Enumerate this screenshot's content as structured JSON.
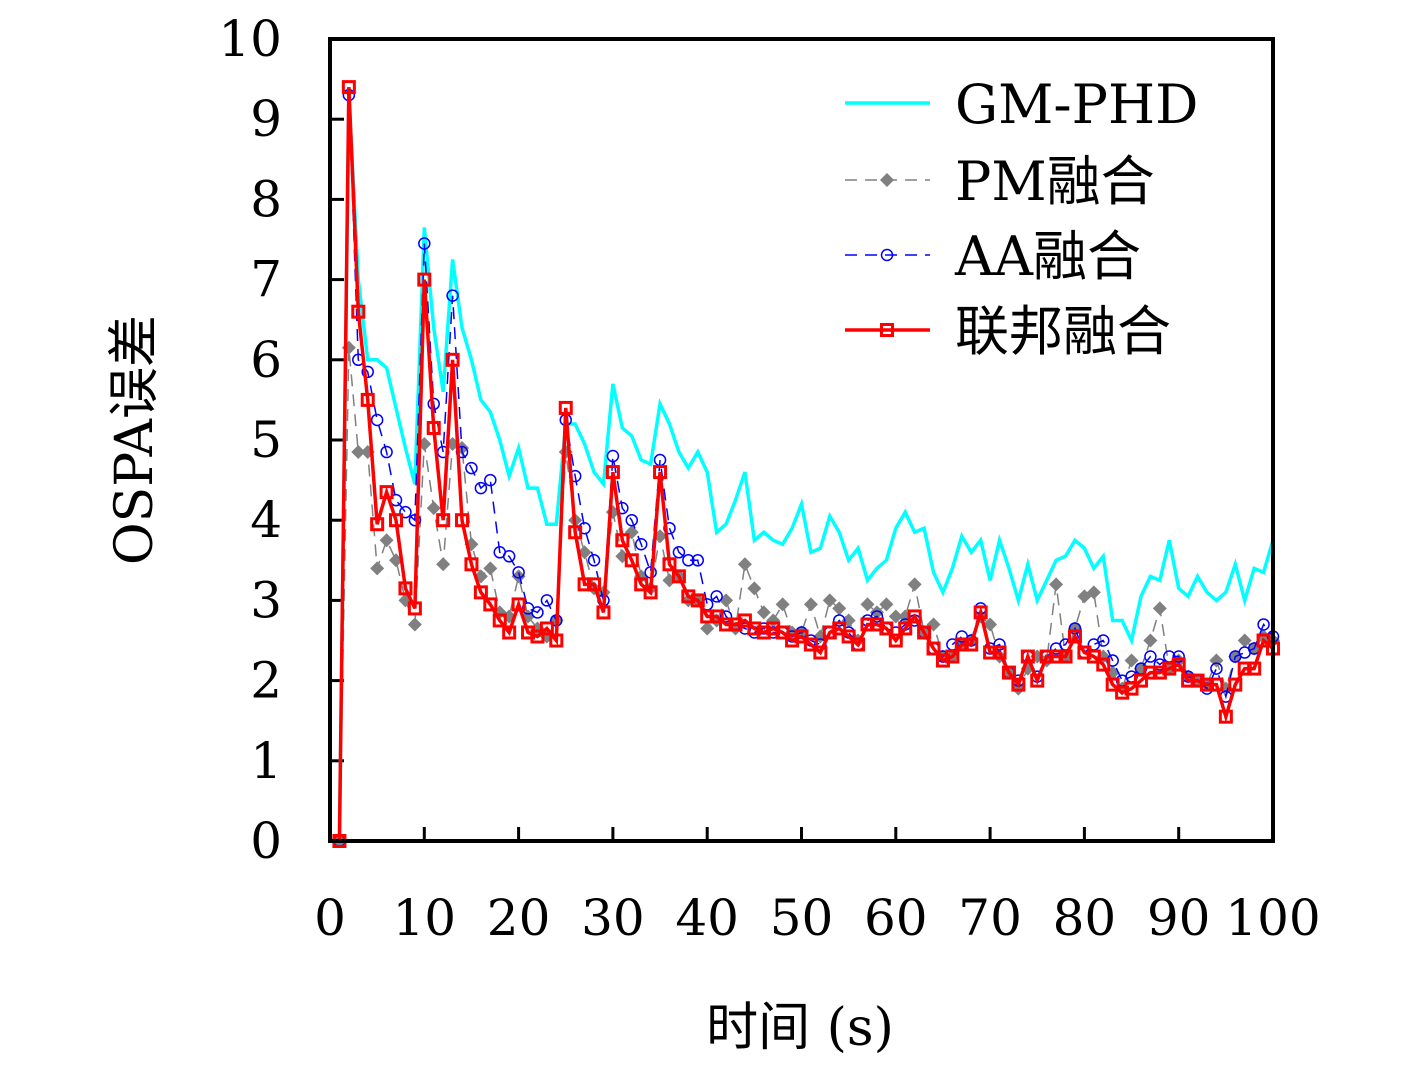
{
  "chart_data": {
    "type": "line",
    "xlabel": "时间 (s)",
    "ylabel": "OSPA误差",
    "xlim": [
      0,
      100
    ],
    "ylim": [
      0,
      10
    ],
    "xticks": [
      0,
      10,
      20,
      30,
      40,
      50,
      60,
      70,
      80,
      90,
      100
    ],
    "yticks": [
      0,
      1,
      2,
      3,
      4,
      5,
      6,
      7,
      8,
      9,
      10
    ],
    "grid": false,
    "legend_placement": "top-right",
    "x": [
      1,
      2,
      3,
      4,
      5,
      6,
      7,
      8,
      9,
      10,
      11,
      12,
      13,
      14,
      15,
      16,
      17,
      18,
      19,
      20,
      21,
      22,
      23,
      24,
      25,
      26,
      27,
      28,
      29,
      30,
      31,
      32,
      33,
      34,
      35,
      36,
      37,
      38,
      39,
      40,
      41,
      42,
      43,
      44,
      45,
      46,
      47,
      48,
      49,
      50,
      51,
      52,
      53,
      54,
      55,
      56,
      57,
      58,
      59,
      60,
      61,
      62,
      63,
      64,
      65,
      66,
      67,
      68,
      69,
      70,
      71,
      72,
      73,
      74,
      75,
      76,
      77,
      78,
      79,
      80,
      81,
      82,
      83,
      84,
      85,
      86,
      87,
      88,
      89,
      90,
      91,
      92,
      93,
      94,
      95,
      96,
      97,
      98,
      99,
      100
    ],
    "series": [
      {
        "name": "GM-PHD",
        "color": "#00ffff",
        "style": "solid",
        "marker": "none",
        "values": [
          0,
          9.3,
          7.0,
          6.0,
          6.0,
          5.9,
          5.4,
          4.9,
          4.45,
          7.65,
          6.4,
          5.6,
          7.25,
          6.4,
          6.0,
          5.5,
          5.35,
          5.0,
          4.55,
          4.9,
          4.4,
          4.4,
          3.95,
          3.95,
          5.2,
          5.2,
          4.95,
          4.6,
          4.45,
          5.7,
          5.15,
          5.05,
          4.75,
          4.7,
          5.45,
          5.2,
          4.85,
          4.65,
          4.85,
          4.6,
          3.85,
          3.95,
          4.25,
          4.6,
          3.75,
          3.85,
          3.75,
          3.7,
          3.9,
          4.2,
          3.6,
          3.65,
          4.05,
          3.85,
          3.5,
          3.65,
          3.25,
          3.4,
          3.5,
          3.9,
          4.1,
          3.85,
          3.9,
          3.35,
          3.1,
          3.4,
          3.8,
          3.6,
          3.75,
          3.25,
          3.75,
          3.4,
          3.0,
          3.45,
          3.0,
          3.25,
          3.5,
          3.55,
          3.75,
          3.65,
          3.4,
          3.55,
          2.75,
          2.75,
          2.5,
          3.05,
          3.3,
          3.25,
          3.75,
          3.15,
          3.05,
          3.3,
          3.1,
          3.0,
          3.1,
          3.45,
          3.0,
          3.4,
          3.35,
          3.75
        ]
      },
      {
        "name": "PM融合",
        "color": "#808080",
        "style": "dashed",
        "marker": "diamond",
        "values": [
          0,
          6.15,
          4.85,
          4.85,
          3.4,
          3.75,
          3.5,
          3.0,
          2.7,
          4.95,
          4.15,
          3.45,
          4.95,
          4.9,
          3.7,
          3.3,
          3.4,
          2.85,
          2.8,
          3.3,
          2.8,
          2.65,
          2.55,
          2.75,
          4.85,
          4.0,
          3.6,
          3.15,
          3.1,
          4.1,
          3.55,
          3.85,
          3.3,
          3.15,
          3.8,
          3.25,
          3.3,
          3.0,
          3.0,
          2.65,
          2.75,
          3.0,
          2.65,
          3.45,
          3.15,
          2.85,
          2.75,
          2.95,
          2.6,
          2.6,
          2.95,
          2.55,
          3.0,
          2.9,
          2.75,
          2.5,
          2.95,
          2.85,
          2.95,
          2.8,
          2.8,
          3.2,
          2.6,
          2.7,
          2.3,
          2.3,
          2.45,
          2.5,
          2.8,
          2.7,
          2.3,
          2.1,
          1.9,
          2.15,
          2.3,
          2.25,
          3.2,
          2.3,
          2.65,
          3.05,
          3.1,
          2.3,
          2.1,
          1.9,
          2.25,
          2.15,
          2.5,
          2.9,
          2.15,
          2.25,
          2.05,
          2.0,
          1.95,
          2.25,
          1.9,
          2.3,
          2.5,
          2.4,
          2.55,
          2.5
        ]
      },
      {
        "name": "AA融合",
        "color": "#0000ff",
        "style": "dashed",
        "marker": "circle",
        "values": [
          0,
          9.3,
          6.0,
          5.85,
          5.25,
          4.85,
          4.25,
          4.1,
          4.0,
          7.45,
          5.45,
          4.85,
          6.8,
          4.85,
          4.65,
          4.4,
          4.5,
          3.6,
          3.55,
          3.35,
          2.9,
          2.85,
          3.0,
          2.75,
          5.25,
          4.55,
          3.9,
          3.5,
          3.0,
          4.8,
          4.15,
          4.0,
          3.7,
          3.35,
          4.75,
          3.9,
          3.6,
          3.5,
          3.5,
          2.95,
          3.05,
          2.8,
          2.7,
          2.65,
          2.6,
          2.65,
          2.6,
          2.6,
          2.55,
          2.6,
          2.5,
          2.45,
          2.6,
          2.75,
          2.6,
          2.45,
          2.75,
          2.8,
          2.65,
          2.6,
          2.7,
          2.75,
          2.6,
          2.4,
          2.3,
          2.45,
          2.55,
          2.5,
          2.9,
          2.4,
          2.45,
          2.1,
          2.0,
          2.3,
          2.05,
          2.3,
          2.4,
          2.45,
          2.65,
          2.35,
          2.45,
          2.5,
          2.25,
          2.0,
          2.05,
          2.15,
          2.3,
          2.2,
          2.3,
          2.3,
          2.05,
          2.0,
          1.9,
          2.15,
          1.8,
          2.3,
          2.35,
          2.4,
          2.7,
          2.55
        ]
      },
      {
        "name": "联邦融合",
        "color": "#ff0000",
        "style": "solid",
        "marker": "square",
        "values": [
          0,
          9.4,
          6.6,
          5.5,
          3.95,
          4.35,
          4.0,
          3.15,
          2.9,
          7.0,
          5.15,
          4.0,
          6.0,
          4.0,
          3.45,
          3.1,
          2.95,
          2.75,
          2.6,
          2.95,
          2.6,
          2.55,
          2.65,
          2.5,
          5.4,
          3.85,
          3.2,
          3.2,
          2.85,
          4.6,
          3.75,
          3.5,
          3.2,
          3.1,
          4.6,
          3.45,
          3.3,
          3.05,
          3.0,
          2.8,
          2.8,
          2.7,
          2.7,
          2.75,
          2.65,
          2.6,
          2.65,
          2.6,
          2.5,
          2.55,
          2.45,
          2.35,
          2.6,
          2.65,
          2.55,
          2.45,
          2.7,
          2.7,
          2.65,
          2.5,
          2.65,
          2.8,
          2.6,
          2.4,
          2.25,
          2.3,
          2.45,
          2.45,
          2.85,
          2.35,
          2.35,
          2.1,
          1.95,
          2.3,
          2.0,
          2.3,
          2.3,
          2.3,
          2.55,
          2.35,
          2.3,
          2.2,
          1.95,
          1.85,
          1.9,
          2.0,
          2.1,
          2.1,
          2.15,
          2.2,
          2.0,
          2.0,
          1.95,
          1.95,
          1.55,
          1.95,
          2.15,
          2.15,
          2.5,
          2.4
        ]
      }
    ]
  }
}
